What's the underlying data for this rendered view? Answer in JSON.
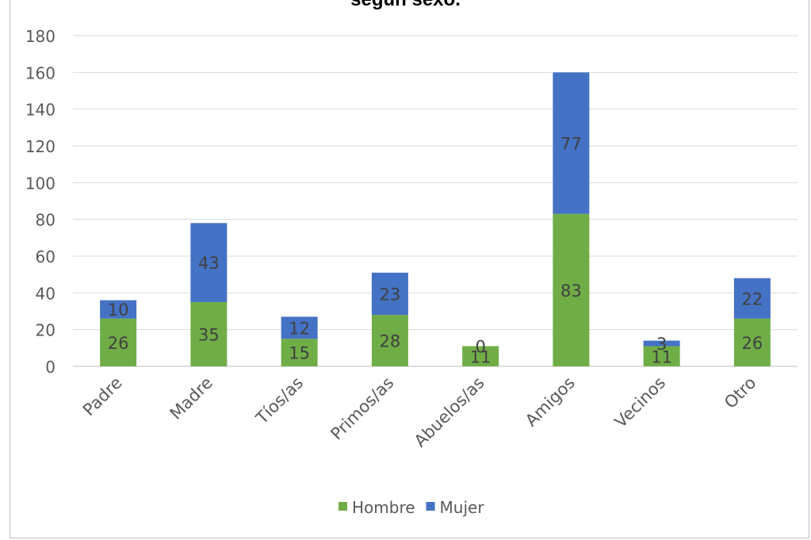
{
  "chart_data": {
    "type": "bar",
    "stacked": true,
    "title": "según sexo.",
    "categories": [
      "Padre",
      "Madre",
      "Tíos/as",
      "Primos/as",
      "Abuelos/as",
      "Amigos",
      "Vecinos",
      "Otro"
    ],
    "series": [
      {
        "name": "Hombre",
        "color": "#70ad47",
        "values": [
          26,
          35,
          15,
          28,
          11,
          83,
          11,
          26
        ]
      },
      {
        "name": "Mujer",
        "color": "#4472c4",
        "values": [
          10,
          43,
          12,
          23,
          0,
          77,
          3,
          22
        ]
      }
    ],
    "ylim": [
      0,
      180
    ],
    "yticks": [
      0,
      20,
      40,
      60,
      80,
      100,
      120,
      140,
      160,
      180
    ],
    "grid": true,
    "legend": "bottom"
  }
}
